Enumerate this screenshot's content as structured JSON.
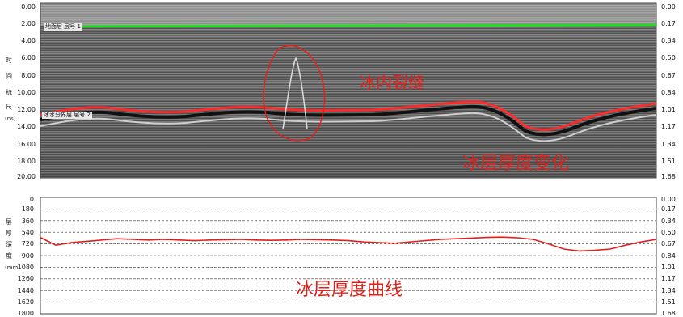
{
  "radargram": {
    "left_axis": [
      "0.00",
      "2.00",
      "4.00",
      "6.00",
      "8.00",
      "10.00",
      "12.00",
      "14.00",
      "16.00",
      "18.00",
      "20.00"
    ],
    "right_axis": [
      "0.00",
      "0.17",
      "0.34",
      "0.50",
      "0.67",
      "0.84",
      "1.01",
      "1.17",
      "1.34",
      "1.51",
      "1.68"
    ],
    "vertical_title": [
      "时",
      "间",
      "标",
      "尺",
      "(ns)"
    ],
    "layer_tag_top": "地面层 层号 1",
    "layer_tag_bottom": "冰水分界层 层号 2",
    "annotation_crack": "冰内裂缝",
    "annotation_thickness": "冰层厚度变化",
    "colors": {
      "surface_line": "#22dd22",
      "ice_layer_line": "#ff2a2a",
      "crack_circle": "#e0201a",
      "annotation": "#e0201a"
    }
  },
  "curve_panel": {
    "left_axis": [
      "0",
      "180",
      "360",
      "540",
      "720",
      "900",
      "1080",
      "1260",
      "1440",
      "1620",
      "1800"
    ],
    "right_axis": [
      "0.00",
      "0.17",
      "0.34",
      "0.50",
      "0.67",
      "0.84",
      "1.01",
      "1.17",
      "1.34",
      "1.51",
      "1.68"
    ],
    "vertical_title": [
      "层",
      "厚",
      "深",
      "度",
      "(mm)"
    ],
    "annotation_curve": "冰层厚度曲线",
    "colors": {
      "curve": "#e02020",
      "grid": "#333333"
    }
  },
  "chart_data": {
    "type": "line",
    "title": "",
    "xlabel": "",
    "ylabel": "层厚深度(mm)",
    "ylim": [
      0,
      1800
    ],
    "x": [
      0,
      1,
      2,
      3,
      4,
      5,
      6,
      7,
      8,
      9,
      10,
      11,
      12,
      13,
      14,
      15,
      16,
      17,
      18,
      19,
      20,
      21,
      22,
      23,
      24,
      25,
      26,
      27,
      28,
      29,
      30,
      31,
      32,
      33,
      34,
      35,
      36,
      37,
      38,
      39,
      40
    ],
    "series": [
      {
        "values": [
          620,
          740,
          700,
          680,
          660,
          640,
          650,
          660,
          650,
          660,
          670,
          660,
          655,
          650,
          660,
          665,
          660,
          650,
          655,
          660,
          670,
          690,
          700,
          710,
          690,
          670,
          650,
          640,
          630,
          620,
          615,
          625,
          650,
          720,
          800,
          830,
          820,
          800,
          740,
          690,
          650
        ]
      }
    ]
  }
}
